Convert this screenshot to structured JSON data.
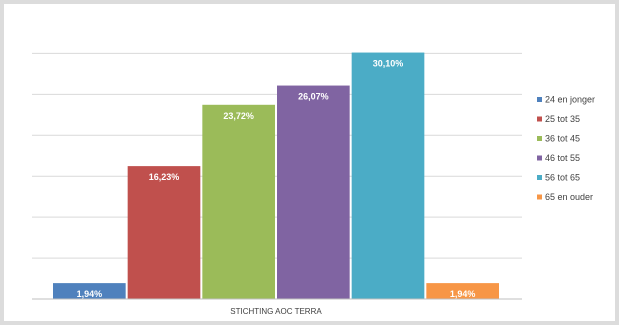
{
  "chart_data": {
    "type": "bar",
    "title": "",
    "xlabel": "",
    "ylabel": "",
    "categories": [
      "STICHTING AOC TERRA"
    ],
    "ylim": [
      0,
      0.32
    ],
    "grid": true,
    "legend_position": "right",
    "series": [
      {
        "name": "24 en jonger",
        "values": [
          0.0194
        ],
        "label": "1,94%",
        "color": "#4f81bd"
      },
      {
        "name": "25 tot 35",
        "values": [
          0.1623
        ],
        "label": "16,23%",
        "color": "#c0504d"
      },
      {
        "name": "36 tot 45",
        "values": [
          0.2372
        ],
        "label": "23,72%",
        "color": "#9bbb59"
      },
      {
        "name": "46 tot 55",
        "values": [
          0.2607
        ],
        "label": "26,07%",
        "color": "#8064a2"
      },
      {
        "name": "56 tot 65",
        "values": [
          0.301
        ],
        "label": "30,10%",
        "color": "#4bacc6"
      },
      {
        "name": "65 en ouder",
        "values": [
          0.0194
        ],
        "label": "1,94%",
        "color": "#f79646"
      }
    ]
  }
}
